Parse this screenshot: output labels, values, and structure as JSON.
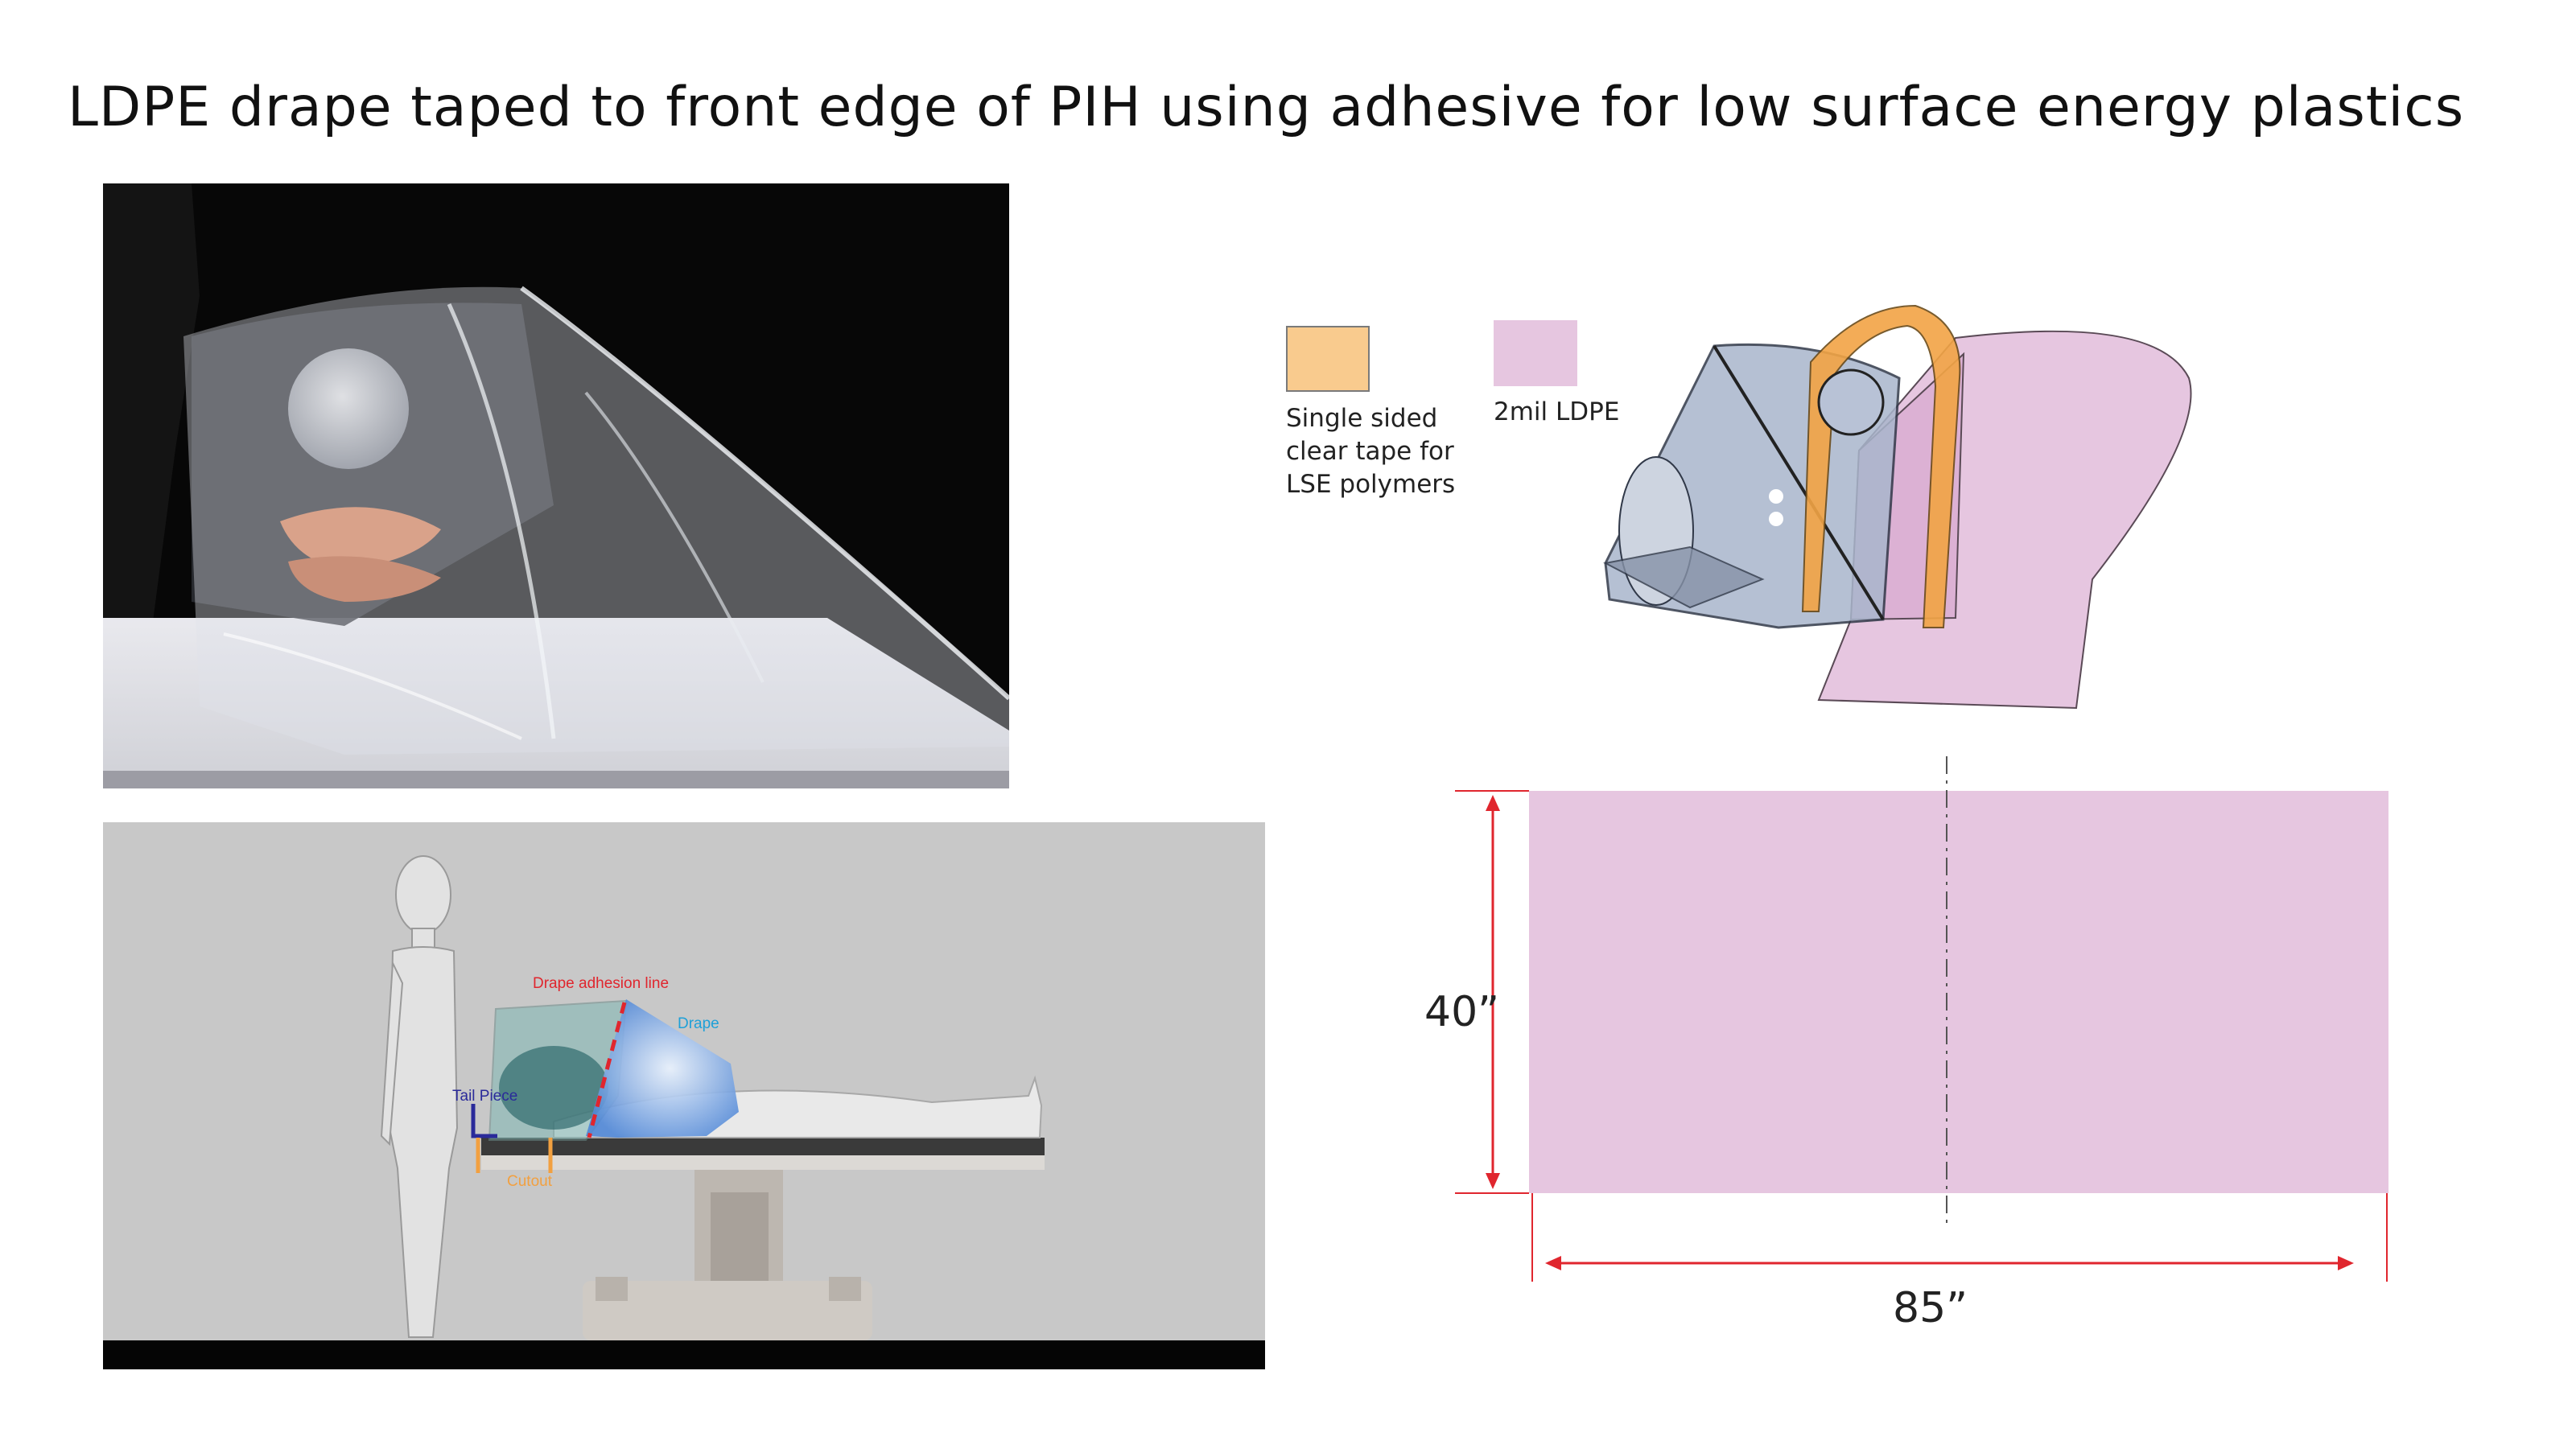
{
  "title": "LDPE drape taped to front edge of PIH using adhesive for low surface energy plastics",
  "legend": [
    {
      "label": "Single sided\nclear tape for\nLSE polymers",
      "color": "#f9cb8e",
      "icon": "tape-swatch"
    },
    {
      "label": "2mil LDPE",
      "color": "#e6c6e0",
      "icon": "ldpe-swatch"
    }
  ],
  "render_labels": {
    "adhesion_line": "Drape adhesion line",
    "drape": "Drape",
    "tail_piece": "Tail Piece",
    "cutout": "Cutout"
  },
  "dimensions": {
    "height": "40”",
    "width": "85”"
  },
  "colors": {
    "ldpe": "#e6c6e0",
    "tape": "#f2a445",
    "dimension_line": "#e0262e",
    "adhesion_line": "#e0262e",
    "drape_label": "#1ea0d8",
    "tail_label": "#2a2a9a",
    "cutout_label": "#f2a040"
  }
}
